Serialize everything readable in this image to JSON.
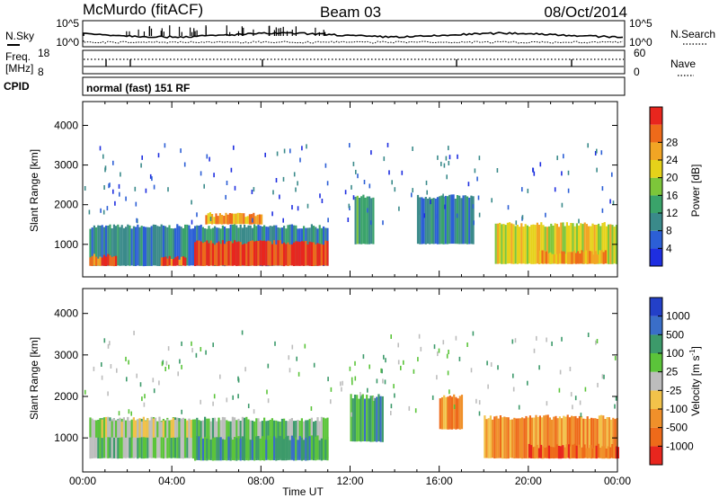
{
  "header": {
    "station": "McMurdo (fitACF)",
    "beam": "Beam 03",
    "date": "08/Oct/2014"
  },
  "status_panels": {
    "nsky_label": "N.Sky",
    "nsearch_label": "N.Search",
    "noise_ticks": [
      "10^5",
      "10^0"
    ],
    "freq_label_top": "Freq.",
    "freq_label_units": "[MHz]",
    "freq_ticks": [
      "18",
      "8"
    ],
    "nave_label": "Nave",
    "nave_ticks": [
      "60",
      "0"
    ],
    "cpid_label": "CPID",
    "cpid_value": "normal (fast) 151 RF"
  },
  "chart_data": [
    {
      "type": "heatmap",
      "name": "power",
      "ylabel": "Slant Range [km]",
      "xlabel": "Time UT",
      "x_ticks": [
        "00:00",
        "04:00",
        "08:00",
        "12:00",
        "16:00",
        "20:00",
        "00:00"
      ],
      "x_range_hours": [
        0,
        24
      ],
      "y_ticks": [
        1000,
        2000,
        3000,
        4000
      ],
      "ylim": [
        180,
        4600
      ],
      "colorbar": {
        "label": "Power [dB]",
        "ticks": [
          "4",
          "8",
          "12",
          "16",
          "20",
          "24",
          "28"
        ],
        "colors": [
          "#1e2ee0",
          "#2c5fd6",
          "#3a8a8a",
          "#3aa36a",
          "#7dc63a",
          "#e6d21a",
          "#f2a524",
          "#ee6a1a",
          "#e8261e"
        ]
      },
      "echo_regions": [
        {
          "t0": 0.3,
          "t1": 11.0,
          "r0": 450,
          "r1": 1450,
          "level": 2
        },
        {
          "t0": 0.3,
          "t1": 1.5,
          "r0": 450,
          "r1": 700,
          "level": 7
        },
        {
          "t0": 3.5,
          "t1": 4.6,
          "r0": 450,
          "r1": 650,
          "level": 7
        },
        {
          "t0": 5.0,
          "t1": 11.0,
          "r0": 450,
          "r1": 1050,
          "level": 8
        },
        {
          "t0": 5.5,
          "t1": 8.0,
          "r0": 1500,
          "r1": 1750,
          "level": 6
        },
        {
          "t0": 12.2,
          "t1": 13.0,
          "r0": 1000,
          "r1": 2200,
          "level": 3
        },
        {
          "t0": 15.0,
          "t1": 17.5,
          "r0": 1000,
          "r1": 2200,
          "level": 2
        },
        {
          "t0": 18.5,
          "t1": 24.0,
          "r0": 500,
          "r1": 1500,
          "level": 5
        },
        {
          "t0": 20.5,
          "t1": 23.5,
          "r0": 500,
          "r1": 800,
          "level": 6
        }
      ]
    },
    {
      "type": "heatmap",
      "name": "velocity",
      "ylabel": "Slant Range [km]",
      "xlabel": "Time UT",
      "x_ticks": [
        "00:00",
        "04:00",
        "08:00",
        "12:00",
        "16:00",
        "20:00",
        "00:00"
      ],
      "x_range_hours": [
        0,
        24
      ],
      "y_ticks": [
        1000,
        2000,
        3000,
        4000
      ],
      "ylim": [
        180,
        4600
      ],
      "colorbar": {
        "label": "Velocity [m s^-1]",
        "ticks": [
          "1000",
          "500",
          "100",
          "25",
          "-25",
          "-100",
          "-500",
          "-1000"
        ],
        "colors": [
          "#2340c8",
          "#3a6ec8",
          "#3c9a6a",
          "#5bc43a",
          "#bdbdbd",
          "#f2c24a",
          "#f0902a",
          "#ee6a1a",
          "#e8261e"
        ]
      },
      "echo_regions": [
        {
          "t0": 0.3,
          "t1": 11.0,
          "r0": 500,
          "r1": 1450,
          "level": 3
        },
        {
          "t0": 0.3,
          "t1": 5.0,
          "r0": 1000,
          "r1": 1450,
          "level": 4
        },
        {
          "t0": 5.0,
          "t1": 11.0,
          "r0": 450,
          "r1": 1000,
          "level": 2
        },
        {
          "t0": 12.0,
          "t1": 13.5,
          "r0": 900,
          "r1": 2000,
          "level": 2
        },
        {
          "t0": 16.0,
          "t1": 17.0,
          "r0": 1200,
          "r1": 2000,
          "level": 6
        },
        {
          "t0": 18.0,
          "t1": 24.0,
          "r0": 500,
          "r1": 1500,
          "level": 6
        },
        {
          "t0": 20.0,
          "t1": 24.0,
          "r0": 500,
          "r1": 800,
          "level": 7
        }
      ]
    }
  ]
}
